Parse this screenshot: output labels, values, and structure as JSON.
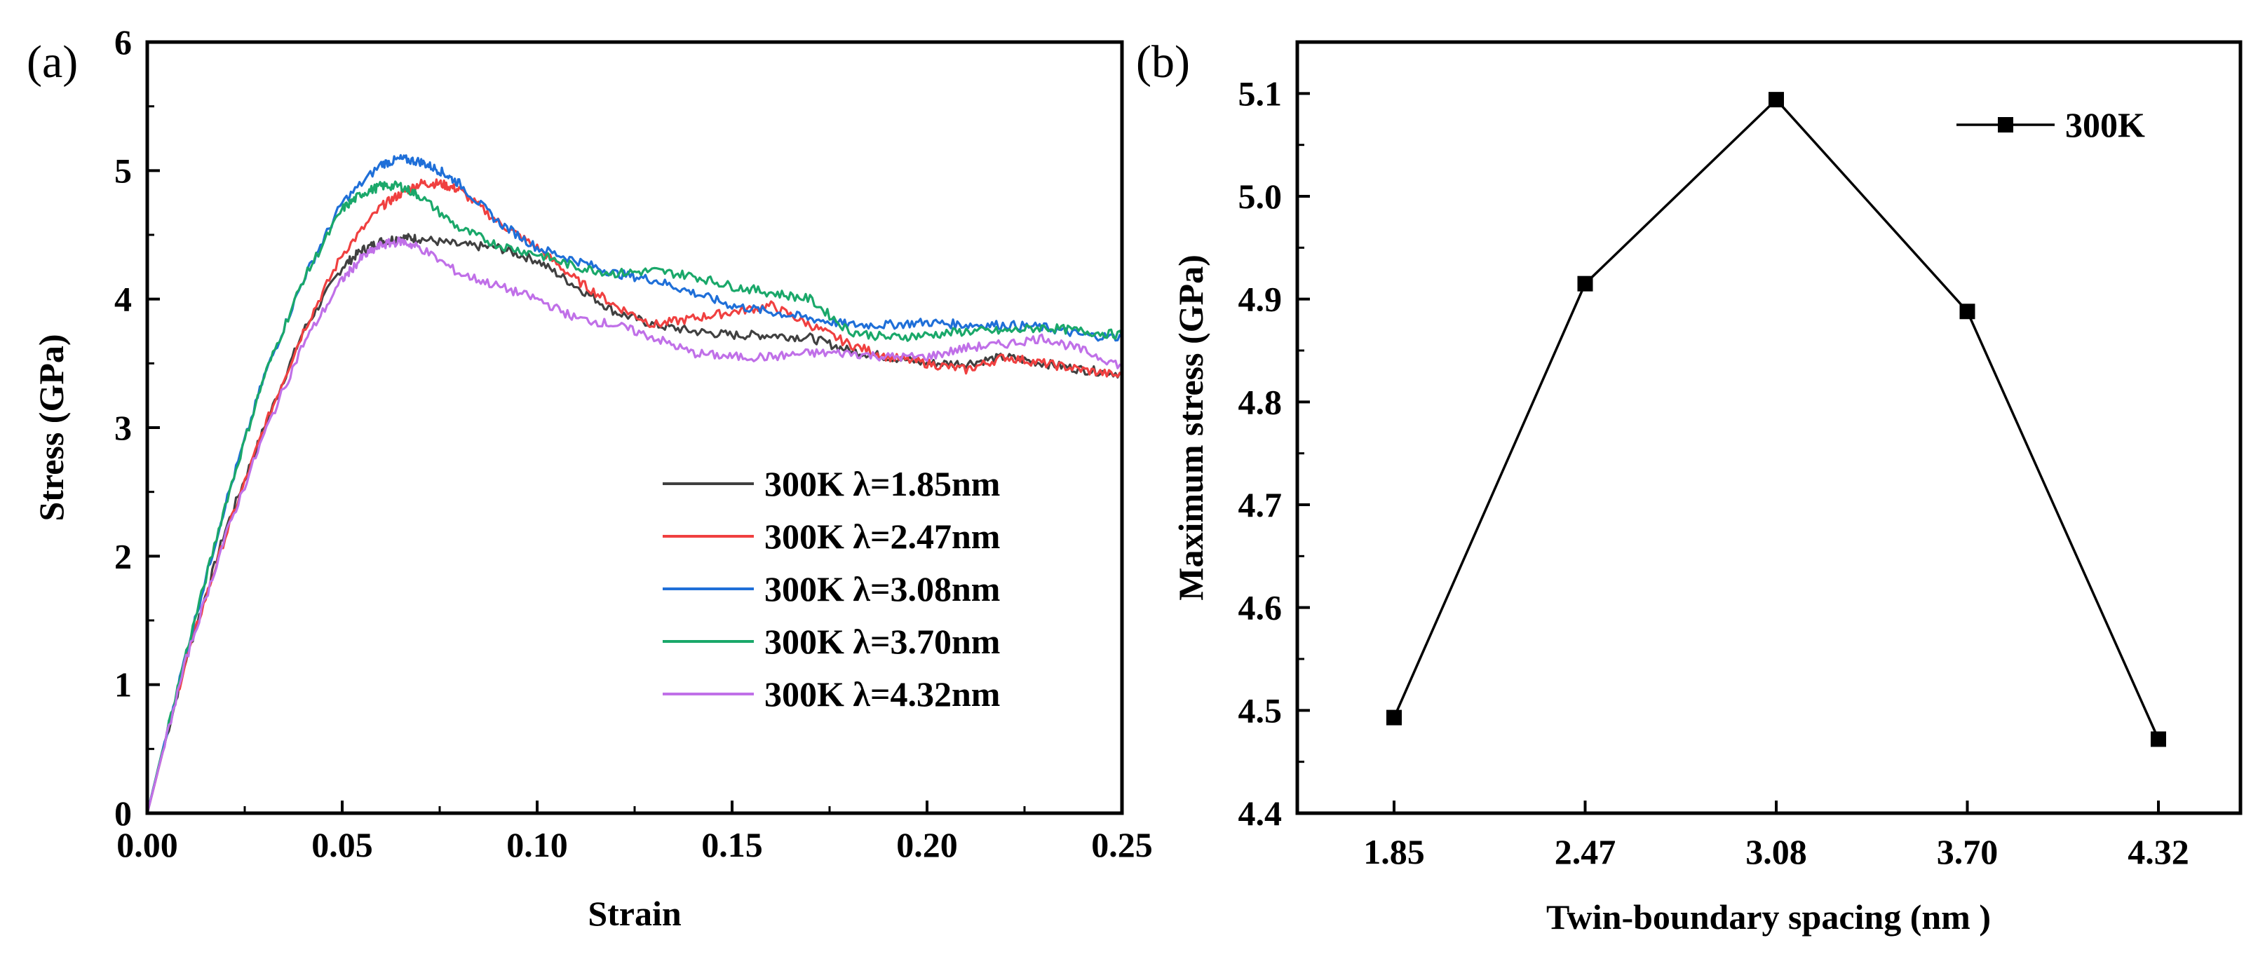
{
  "chart_data": [
    {
      "panel_label": "(a)",
      "type": "line",
      "xlabel": "Strain",
      "ylabel": "Stress (GPa)",
      "xlim": [
        0,
        0.25
      ],
      "ylim": [
        0,
        6
      ],
      "xticks": [
        "0.00",
        "0.05",
        "0.10",
        "0.15",
        "0.20",
        "0.25"
      ],
      "yticks": [
        "0",
        "1",
        "2",
        "3",
        "4",
        "5",
        "6"
      ],
      "legend_position": "lower-right",
      "series": [
        {
          "name": "300K λ=1.85nm",
          "color": "#404040",
          "x": [
            0,
            0.01,
            0.02,
            0.03,
            0.04,
            0.05,
            0.055,
            0.06,
            0.065,
            0.07,
            0.08,
            0.09,
            0.1,
            0.11,
            0.12,
            0.13,
            0.14,
            0.15,
            0.16,
            0.17,
            0.18,
            0.19,
            0.2,
            0.21,
            0.22,
            0.23,
            0.24,
            0.25
          ],
          "y": [
            0,
            1.2,
            2.2,
            3.0,
            3.75,
            4.25,
            4.38,
            4.45,
            4.48,
            4.47,
            4.42,
            4.4,
            4.3,
            4.1,
            3.9,
            3.8,
            3.75,
            3.72,
            3.72,
            3.7,
            3.6,
            3.55,
            3.5,
            3.5,
            3.55,
            3.5,
            3.45,
            3.42
          ]
        },
        {
          "name": "300K λ=2.47nm",
          "color": "#f04040",
          "x": [
            0,
            0.01,
            0.02,
            0.03,
            0.04,
            0.05,
            0.06,
            0.065,
            0.07,
            0.075,
            0.08,
            0.09,
            0.1,
            0.11,
            0.12,
            0.13,
            0.14,
            0.15,
            0.16,
            0.17,
            0.18,
            0.19,
            0.2,
            0.21,
            0.22,
            0.23,
            0.24,
            0.25
          ],
          "y": [
            0,
            1.2,
            2.15,
            3.0,
            3.75,
            4.35,
            4.72,
            4.82,
            4.9,
            4.9,
            4.85,
            4.6,
            4.4,
            4.15,
            3.95,
            3.8,
            3.85,
            3.9,
            3.95,
            3.8,
            3.65,
            3.55,
            3.5,
            3.45,
            3.55,
            3.5,
            3.45,
            3.4
          ]
        },
        {
          "name": "300K λ=3.08nm",
          "color": "#1f6fd8",
          "x": [
            0,
            0.01,
            0.02,
            0.03,
            0.04,
            0.05,
            0.06,
            0.065,
            0.07,
            0.075,
            0.08,
            0.09,
            0.1,
            0.11,
            0.12,
            0.13,
            0.14,
            0.15,
            0.16,
            0.17,
            0.18,
            0.19,
            0.2,
            0.21,
            0.22,
            0.23,
            0.24,
            0.25
          ],
          "y": [
            0,
            1.25,
            2.4,
            3.4,
            4.15,
            4.75,
            5.05,
            5.09,
            5.07,
            5.0,
            4.9,
            4.6,
            4.4,
            4.3,
            4.2,
            4.15,
            4.05,
            3.95,
            3.9,
            3.85,
            3.8,
            3.8,
            3.82,
            3.8,
            3.8,
            3.78,
            3.72,
            3.7
          ]
        },
        {
          "name": "300K λ=3.70nm",
          "color": "#1aa86a",
          "x": [
            0,
            0.01,
            0.02,
            0.03,
            0.04,
            0.05,
            0.055,
            0.06,
            0.065,
            0.07,
            0.08,
            0.09,
            0.1,
            0.11,
            0.12,
            0.13,
            0.14,
            0.15,
            0.16,
            0.17,
            0.18,
            0.19,
            0.2,
            0.21,
            0.22,
            0.23,
            0.24,
            0.25
          ],
          "y": [
            0,
            1.25,
            2.4,
            3.4,
            4.15,
            4.7,
            4.82,
            4.88,
            4.88,
            4.8,
            4.55,
            4.42,
            4.35,
            4.25,
            4.2,
            4.22,
            4.18,
            4.1,
            4.05,
            4.0,
            3.75,
            3.7,
            3.72,
            3.75,
            3.75,
            3.78,
            3.75,
            3.72
          ]
        },
        {
          "name": "300K λ=4.32nm",
          "color": "#c070e8",
          "x": [
            0,
            0.01,
            0.02,
            0.03,
            0.04,
            0.05,
            0.055,
            0.06,
            0.065,
            0.07,
            0.08,
            0.09,
            0.1,
            0.11,
            0.12,
            0.13,
            0.14,
            0.15,
            0.16,
            0.17,
            0.18,
            0.19,
            0.2,
            0.21,
            0.22,
            0.23,
            0.24,
            0.25
          ],
          "y": [
            0,
            1.2,
            2.15,
            2.95,
            3.65,
            4.15,
            4.32,
            4.42,
            4.45,
            4.4,
            4.2,
            4.1,
            4.0,
            3.85,
            3.8,
            3.7,
            3.58,
            3.55,
            3.55,
            3.58,
            3.58,
            3.55,
            3.55,
            3.62,
            3.65,
            3.7,
            3.6,
            3.48
          ]
        }
      ]
    },
    {
      "panel_label": "(b)",
      "type": "line",
      "xlabel": "Twin-boundary spacing (nm )",
      "ylabel": "Maximum stress (GPa)",
      "categories": [
        "1.85",
        "2.47",
        "3.08",
        "3.70",
        "4.32"
      ],
      "ylim": [
        4.4,
        5.15
      ],
      "yticks": [
        "4.4",
        "4.5",
        "4.6",
        "4.7",
        "4.8",
        "4.9",
        "5.0",
        "5.1"
      ],
      "legend_position": "top-right",
      "series": [
        {
          "name": "300K",
          "color": "#000000",
          "marker": "square",
          "values": [
            4.493,
            4.915,
            5.094,
            4.888,
            4.472
          ]
        }
      ]
    }
  ]
}
